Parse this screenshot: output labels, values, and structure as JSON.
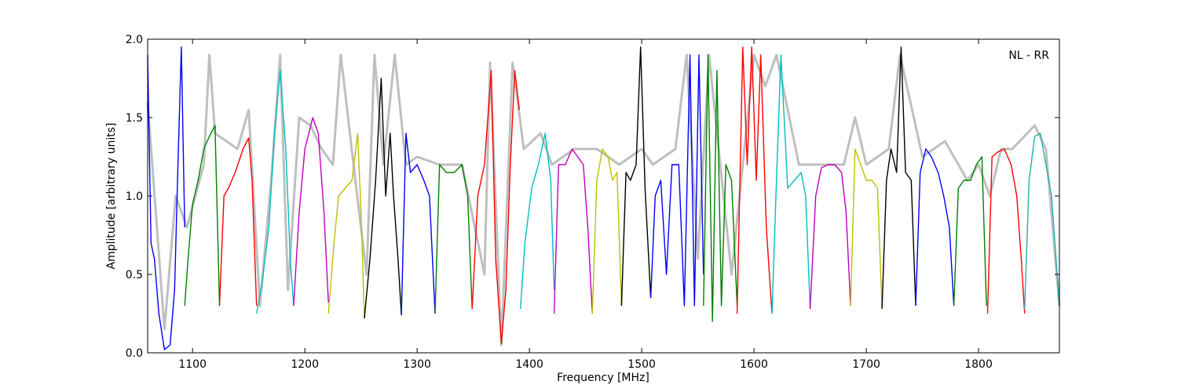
{
  "chart_data": {
    "type": "line",
    "title": "",
    "xlabel": "Frequency [MHz]",
    "ylabel": "Amplitude [arbitrary units]",
    "annotation": "NL - RR",
    "xlim": [
      1060,
      1872
    ],
    "ylim": [
      0.0,
      2.0
    ],
    "x_ticks": [
      1100,
      1200,
      1300,
      1400,
      1500,
      1600,
      1700,
      1800
    ],
    "y_ticks": [
      0.0,
      0.5,
      1.0,
      1.5,
      2.0
    ],
    "x_tick_labels": [
      "1100",
      "1200",
      "1300",
      "1400",
      "1500",
      "1600",
      "1700",
      "1800"
    ],
    "y_tick_labels": [
      "0.0",
      "0.5",
      "1.0",
      "1.5",
      "2.0"
    ],
    "grid": false,
    "background_series": {
      "color": "#bfbfbf",
      "x": [
        1060,
        1075,
        1085,
        1095,
        1110,
        1115,
        1120,
        1140,
        1150,
        1160,
        1170,
        1178,
        1185,
        1195,
        1205,
        1215,
        1225,
        1232,
        1245,
        1255,
        1262,
        1270,
        1280,
        1290,
        1300,
        1320,
        1340,
        1360,
        1365,
        1375,
        1385,
        1395,
        1410,
        1420,
        1440,
        1460,
        1480,
        1500,
        1510,
        1530,
        1540,
        1550,
        1560,
        1580,
        1600,
        1610,
        1620,
        1640,
        1660,
        1680,
        1690,
        1700,
        1720,
        1730,
        1750,
        1770,
        1790,
        1800,
        1810,
        1820,
        1830,
        1850,
        1860,
        1872
      ],
      "y": [
        1.6,
        0.15,
        1.0,
        0.8,
        1.2,
        1.9,
        1.4,
        1.3,
        1.55,
        0.3,
        1.1,
        1.9,
        0.4,
        1.5,
        1.45,
        1.3,
        1.2,
        1.9,
        1.1,
        0.5,
        1.9,
        1.2,
        1.9,
        1.2,
        1.25,
        1.2,
        1.2,
        0.5,
        1.85,
        0.05,
        1.85,
        1.3,
        1.4,
        1.2,
        1.3,
        1.3,
        1.2,
        1.3,
        1.2,
        1.3,
        1.9,
        0.6,
        1.9,
        0.5,
        1.9,
        1.7,
        1.9,
        1.2,
        1.2,
        1.2,
        1.5,
        1.2,
        1.3,
        1.9,
        1.25,
        1.35,
        1.1,
        1.2,
        1.0,
        1.3,
        1.3,
        1.45,
        1.3,
        0.3
      ]
    },
    "series": [
      {
        "color": "#0000ff",
        "x": [
          1060,
          1063,
          1066,
          1070,
          1075,
          1080,
          1084,
          1087,
          1090,
          1093
        ],
        "y": [
          1.9,
          0.7,
          0.6,
          0.25,
          0.02,
          0.05,
          0.4,
          1.2,
          1.95,
          0.8
        ]
      },
      {
        "color": "#008000",
        "x": [
          1093,
          1096,
          1100,
          1105,
          1110,
          1115,
          1120,
          1124
        ],
        "y": [
          0.3,
          0.6,
          0.95,
          1.1,
          1.3,
          1.38,
          1.45,
          0.3
        ]
      },
      {
        "color": "#ff0000",
        "x": [
          1124,
          1128,
          1132,
          1138,
          1145,
          1150,
          1153,
          1157
        ],
        "y": [
          0.3,
          1.0,
          1.05,
          1.15,
          1.3,
          1.37,
          1.1,
          0.3
        ]
      },
      {
        "color": "#00bfbf",
        "x": [
          1157,
          1162,
          1168,
          1173,
          1178,
          1183,
          1187,
          1190
        ],
        "y": [
          0.25,
          0.45,
          0.8,
          1.4,
          1.8,
          1.3,
          0.6,
          0.3
        ]
      },
      {
        "color": "#bf00bf",
        "x": [
          1190,
          1195,
          1200,
          1207,
          1212,
          1217,
          1221
        ],
        "y": [
          0.3,
          0.9,
          1.3,
          1.5,
          1.4,
          0.9,
          0.32
        ]
      },
      {
        "color": "#bfbf00",
        "x": [
          1221,
          1226,
          1230,
          1236,
          1242,
          1247,
          1250,
          1253
        ],
        "y": [
          0.25,
          0.7,
          1.0,
          1.05,
          1.1,
          1.4,
          0.9,
          0.22
        ]
      },
      {
        "color": "#000000",
        "x": [
          1253,
          1258,
          1263,
          1268,
          1272,
          1276,
          1279,
          1283,
          1286
        ],
        "y": [
          0.22,
          0.6,
          1.1,
          1.75,
          1.0,
          1.4,
          1.0,
          0.6,
          0.24
        ]
      },
      {
        "color": "#0000ff",
        "x": [
          1286,
          1290,
          1294,
          1300,
          1306,
          1311,
          1316
        ],
        "y": [
          0.24,
          1.4,
          1.15,
          1.2,
          1.1,
          1.0,
          0.25
        ]
      },
      {
        "color": "#008000",
        "x": [
          1316,
          1320,
          1326,
          1333,
          1340,
          1345,
          1349
        ],
        "y": [
          0.25,
          1.2,
          1.15,
          1.15,
          1.2,
          1.0,
          0.28
        ]
      },
      {
        "color": "#ff0000",
        "x": [
          1349,
          1354,
          1360,
          1366,
          1370,
          1375,
          1379,
          1383,
          1387,
          1391
        ],
        "y": [
          0.28,
          1.0,
          1.2,
          1.8,
          0.6,
          0.06,
          0.4,
          1.2,
          1.8,
          1.55
        ]
      },
      {
        "color": "#00bfbf",
        "x": [
          1392,
          1396,
          1402,
          1408,
          1414,
          1419,
          1422
        ],
        "y": [
          0.28,
          0.7,
          1.05,
          1.2,
          1.4,
          1.1,
          0.4
        ]
      },
      {
        "color": "#bf00bf",
        "x": [
          1422,
          1426,
          1432,
          1438,
          1443,
          1448,
          1452,
          1456
        ],
        "y": [
          0.25,
          1.2,
          1.2,
          1.3,
          1.25,
          1.2,
          0.8,
          0.25
        ]
      },
      {
        "color": "#bfbf00",
        "x": [
          1456,
          1460,
          1465,
          1470,
          1474,
          1478,
          1482
        ],
        "y": [
          0.25,
          1.1,
          1.3,
          1.25,
          1.1,
          1.15,
          0.3
        ]
      },
      {
        "color": "#000000",
        "x": [
          1482,
          1486,
          1490,
          1495,
          1499,
          1503,
          1508
        ],
        "y": [
          0.3,
          1.15,
          1.1,
          1.2,
          1.95,
          1.05,
          0.35
        ]
      },
      {
        "color": "#0000ff",
        "x": [
          1508,
          1512,
          1517,
          1522,
          1527,
          1533,
          1538,
          1543,
          1547,
          1551,
          1555
        ],
        "y": [
          0.35,
          1.0,
          1.1,
          0.5,
          1.2,
          1.2,
          0.3,
          1.9,
          0.3,
          1.9,
          0.5
        ]
      },
      {
        "color": "#008000",
        "x": [
          1555,
          1559,
          1563,
          1567,
          1571,
          1575,
          1580,
          1585
        ],
        "y": [
          0.3,
          1.9,
          0.2,
          1.8,
          0.3,
          1.2,
          1.1,
          0.3
        ]
      },
      {
        "color": "#ff0000",
        "x": [
          1585,
          1590,
          1594,
          1598,
          1602,
          1606,
          1611,
          1616
        ],
        "y": [
          0.25,
          1.95,
          1.2,
          1.95,
          1.1,
          1.9,
          0.8,
          0.25
        ]
      },
      {
        "color": "#00bfbf",
        "x": [
          1616,
          1620,
          1624,
          1630,
          1636,
          1642,
          1646,
          1650
        ],
        "y": [
          0.25,
          1.1,
          1.9,
          1.05,
          1.1,
          1.15,
          1.0,
          0.28
        ]
      },
      {
        "color": "#bf00bf",
        "x": [
          1650,
          1655,
          1660,
          1666,
          1672,
          1678,
          1682,
          1686
        ],
        "y": [
          0.28,
          1.0,
          1.18,
          1.2,
          1.2,
          1.15,
          0.9,
          0.3
        ]
      },
      {
        "color": "#bfbf00",
        "x": [
          1686,
          1690,
          1695,
          1700,
          1705,
          1710,
          1714
        ],
        "y": [
          0.3,
          1.3,
          1.2,
          1.1,
          1.1,
          1.05,
          0.28
        ]
      },
      {
        "color": "#000000",
        "x": [
          1714,
          1718,
          1722,
          1727,
          1731,
          1735,
          1740,
          1744
        ],
        "y": [
          0.28,
          1.1,
          1.3,
          1.15,
          1.95,
          1.15,
          1.1,
          0.3
        ]
      },
      {
        "color": "#0000ff",
        "x": [
          1744,
          1748,
          1753,
          1758,
          1764,
          1769,
          1774,
          1778
        ],
        "y": [
          0.3,
          1.15,
          1.3,
          1.25,
          1.15,
          1.0,
          0.8,
          0.3
        ]
      },
      {
        "color": "#008000",
        "x": [
          1778,
          1782,
          1787,
          1793,
          1798,
          1803,
          1807
        ],
        "y": [
          0.3,
          1.05,
          1.1,
          1.1,
          1.2,
          1.25,
          0.3
        ]
      },
      {
        "color": "#ff0000",
        "x": [
          1808,
          1812,
          1817,
          1823,
          1829,
          1834,
          1838,
          1841
        ],
        "y": [
          0.25,
          1.25,
          1.28,
          1.3,
          1.2,
          1.0,
          0.6,
          0.25
        ]
      },
      {
        "color": "#20b2aa",
        "x": [
          1841,
          1845,
          1850,
          1855,
          1860,
          1865,
          1869,
          1872
        ],
        "y": [
          0.28,
          1.1,
          1.38,
          1.4,
          1.2,
          1.0,
          0.6,
          0.3
        ]
      }
    ]
  }
}
